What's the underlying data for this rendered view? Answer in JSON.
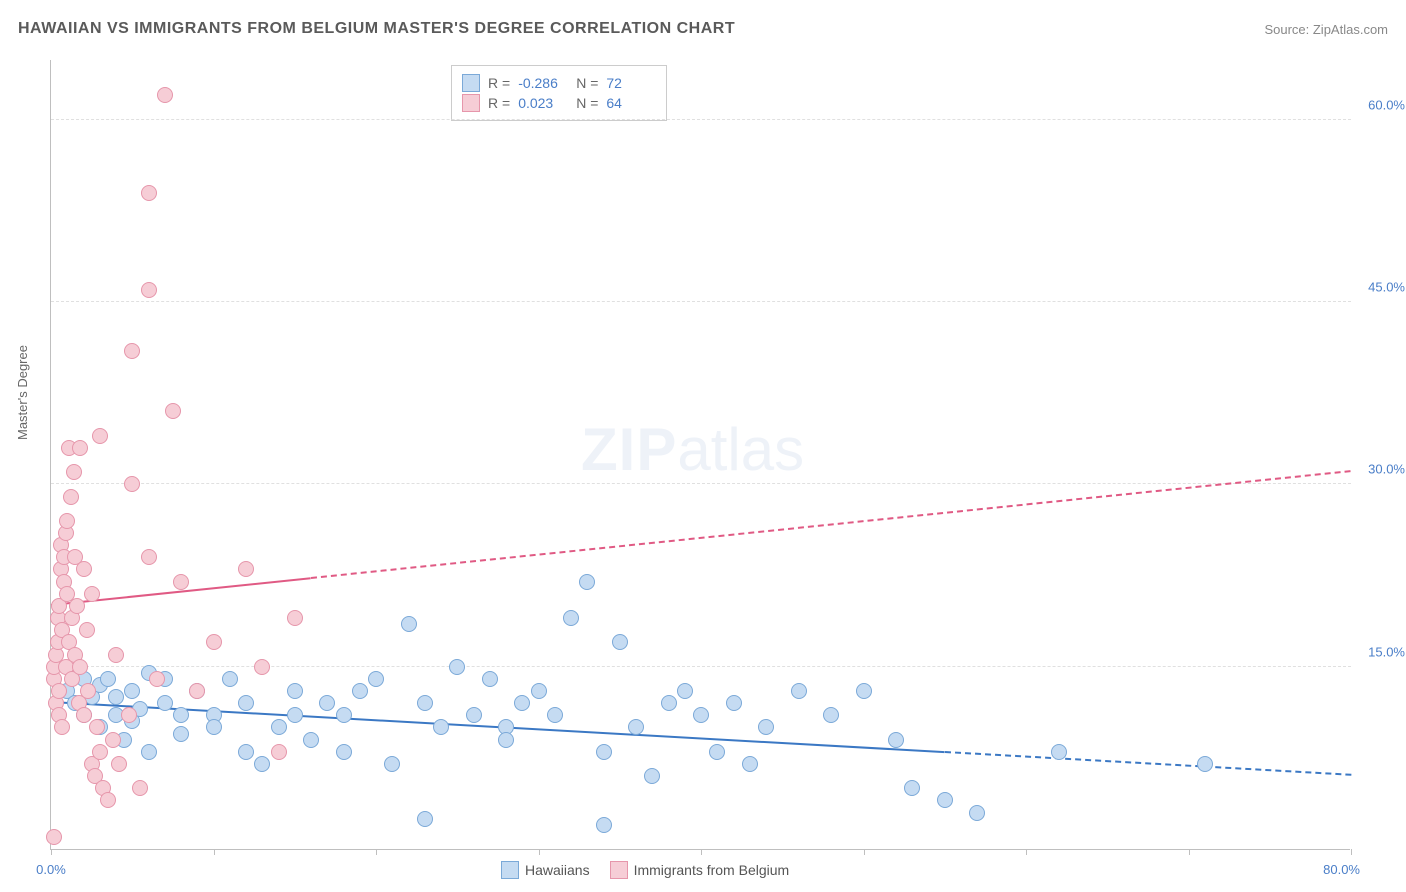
{
  "title": "HAWAIIAN VS IMMIGRANTS FROM BELGIUM MASTER'S DEGREE CORRELATION CHART",
  "source": "Source: ZipAtlas.com",
  "watermark_zip": "ZIP",
  "watermark_atlas": "atlas",
  "ylabel": "Master's Degree",
  "chart": {
    "type": "scatter",
    "xlim": [
      0,
      80
    ],
    "ylim": [
      0,
      65
    ],
    "background_color": "#ffffff",
    "grid_color": "#e0e0e0",
    "axis_color": "#bfbfbf",
    "yticks": [
      {
        "v": 15,
        "label": "15.0%"
      },
      {
        "v": 30,
        "label": "30.0%"
      },
      {
        "v": 45,
        "label": "45.0%"
      },
      {
        "v": 60,
        "label": "60.0%"
      }
    ],
    "xticks": [
      {
        "v": 0,
        "label": "0.0%"
      },
      {
        "v": 10,
        "label": ""
      },
      {
        "v": 20,
        "label": ""
      },
      {
        "v": 30,
        "label": ""
      },
      {
        "v": 40,
        "label": ""
      },
      {
        "v": 50,
        "label": ""
      },
      {
        "v": 60,
        "label": ""
      },
      {
        "v": 70,
        "label": ""
      },
      {
        "v": 80,
        "label": "80.0%"
      }
    ],
    "marker_radius": 8,
    "marker_stroke_width": 1.5,
    "series": [
      {
        "name": "Hawaiians",
        "fill": "#c5dbf2",
        "stroke": "#7ba9d8",
        "R": "-0.286",
        "N": "72",
        "trend": {
          "x1": 0,
          "y1": 12,
          "x2": 80,
          "y2": 6,
          "solid_until": 55,
          "color": "#3b78c4",
          "width": 2
        },
        "points": [
          [
            1,
            13
          ],
          [
            1.5,
            12
          ],
          [
            2,
            14
          ],
          [
            2,
            11
          ],
          [
            2.5,
            12.5
          ],
          [
            3,
            10
          ],
          [
            3,
            13.5
          ],
          [
            3.5,
            14
          ],
          [
            4,
            11
          ],
          [
            4,
            12.5
          ],
          [
            4.5,
            9
          ],
          [
            5,
            13
          ],
          [
            5,
            10.5
          ],
          [
            5.5,
            11.5
          ],
          [
            6,
            14.5
          ],
          [
            6,
            8
          ],
          [
            7,
            14
          ],
          [
            7,
            12
          ],
          [
            8,
            11
          ],
          [
            8,
            9.5
          ],
          [
            9,
            13
          ],
          [
            10,
            11
          ],
          [
            10,
            10
          ],
          [
            11,
            14
          ],
          [
            12,
            12
          ],
          [
            12,
            8
          ],
          [
            13,
            7
          ],
          [
            14,
            10
          ],
          [
            15,
            11
          ],
          [
            15,
            13
          ],
          [
            16,
            9
          ],
          [
            17,
            12
          ],
          [
            18,
            8
          ],
          [
            18,
            11
          ],
          [
            19,
            13
          ],
          [
            20,
            14
          ],
          [
            21,
            7
          ],
          [
            22,
            18.5
          ],
          [
            23,
            12
          ],
          [
            23,
            2.5
          ],
          [
            24,
            10
          ],
          [
            25,
            15
          ],
          [
            26,
            11
          ],
          [
            27,
            14
          ],
          [
            28,
            10
          ],
          [
            28,
            9
          ],
          [
            29,
            12
          ],
          [
            30,
            13
          ],
          [
            31,
            11
          ],
          [
            32,
            19
          ],
          [
            33,
            22
          ],
          [
            34,
            8
          ],
          [
            34,
            2
          ],
          [
            35,
            17
          ],
          [
            36,
            10
          ],
          [
            37,
            6
          ],
          [
            38,
            12
          ],
          [
            39,
            13
          ],
          [
            40,
            11
          ],
          [
            41,
            8
          ],
          [
            42,
            12
          ],
          [
            43,
            7
          ],
          [
            44,
            10
          ],
          [
            46,
            13
          ],
          [
            48,
            11
          ],
          [
            50,
            13
          ],
          [
            52,
            9
          ],
          [
            53,
            5
          ],
          [
            55,
            4
          ],
          [
            57,
            3
          ],
          [
            62,
            8
          ],
          [
            71,
            7
          ]
        ]
      },
      {
        "name": "Immigrants from Belgium",
        "fill": "#f6cdd6",
        "stroke": "#e696ab",
        "R": "0.023",
        "N": "64",
        "trend": {
          "x1": 0,
          "y1": 20,
          "x2": 80,
          "y2": 31,
          "solid_until": 16,
          "color": "#e05a84",
          "width": 2
        },
        "points": [
          [
            0.2,
            1
          ],
          [
            0.2,
            14
          ],
          [
            0.2,
            15
          ],
          [
            0.3,
            12
          ],
          [
            0.3,
            16
          ],
          [
            0.4,
            17
          ],
          [
            0.4,
            19
          ],
          [
            0.5,
            11
          ],
          [
            0.5,
            13
          ],
          [
            0.5,
            20
          ],
          [
            0.6,
            23
          ],
          [
            0.6,
            25
          ],
          [
            0.7,
            10
          ],
          [
            0.7,
            18
          ],
          [
            0.8,
            22
          ],
          [
            0.8,
            24
          ],
          [
            0.9,
            26
          ],
          [
            0.9,
            15
          ],
          [
            1,
            27
          ],
          [
            1,
            21
          ],
          [
            1.1,
            33
          ],
          [
            1.1,
            17
          ],
          [
            1.2,
            29
          ],
          [
            1.3,
            19
          ],
          [
            1.3,
            14
          ],
          [
            1.4,
            31
          ],
          [
            1.5,
            24
          ],
          [
            1.5,
            16
          ],
          [
            1.6,
            20
          ],
          [
            1.7,
            12
          ],
          [
            1.8,
            33
          ],
          [
            1.8,
            15
          ],
          [
            2,
            11
          ],
          [
            2,
            23
          ],
          [
            2.2,
            18
          ],
          [
            2.3,
            13
          ],
          [
            2.5,
            21
          ],
          [
            2.5,
            7
          ],
          [
            2.7,
            6
          ],
          [
            2.8,
            10
          ],
          [
            3,
            34
          ],
          [
            3,
            8
          ],
          [
            3.2,
            5
          ],
          [
            3.5,
            4
          ],
          [
            3.8,
            9
          ],
          [
            4,
            16
          ],
          [
            4.2,
            7
          ],
          [
            4.8,
            11
          ],
          [
            5,
            30
          ],
          [
            5,
            41
          ],
          [
            5.5,
            5
          ],
          [
            6,
            24
          ],
          [
            6,
            54
          ],
          [
            6,
            46
          ],
          [
            6.5,
            14
          ],
          [
            7,
            62
          ],
          [
            7.5,
            36
          ],
          [
            8,
            22
          ],
          [
            9,
            13
          ],
          [
            10,
            17
          ],
          [
            12,
            23
          ],
          [
            13,
            15
          ],
          [
            14,
            8
          ],
          [
            15,
            19
          ]
        ]
      }
    ]
  },
  "legend": {
    "series1_label": "Hawaiians",
    "series2_label": "Immigrants from Belgium"
  },
  "stats_labels": {
    "R": "R =",
    "N": "N ="
  }
}
